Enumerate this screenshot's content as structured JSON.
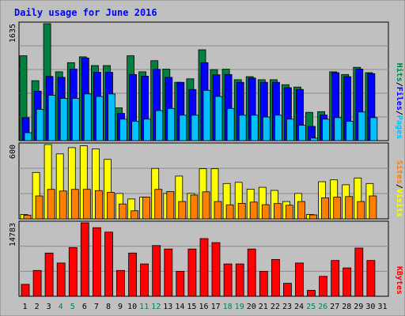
{
  "title": "Daily usage for June 2016",
  "colors": {
    "background": "#c0c0c0",
    "title": "#0000ff",
    "hits": "#008040",
    "files": "#0000ff",
    "pages": "#00c0ff",
    "visits": "#ffff00",
    "sites": "#ff8000",
    "kbytes": "#ff0000",
    "weekend_label": "#00805c",
    "weekday_label": "#000000"
  },
  "chart_data": [
    {
      "type": "bar",
      "panel": "hits-files-pages",
      "ymax_label": "1635",
      "ylim": [
        0,
        1635
      ],
      "axis_legend": [
        "Hits",
        "Files",
        "Pages"
      ],
      "categories": [
        "1",
        "2",
        "3",
        "4",
        "5",
        "6",
        "7",
        "8",
        "9",
        "10",
        "11",
        "12",
        "13",
        "14",
        "15",
        "16",
        "17",
        "18",
        "19",
        "20",
        "21",
        "22",
        "23",
        "24",
        "25",
        "26",
        "27",
        "28",
        "29",
        "30",
        "31"
      ],
      "weekend_days": [
        4,
        5,
        11,
        12,
        18,
        19,
        25,
        26
      ],
      "series": [
        {
          "name": "Hits",
          "values": [
            1187,
            839,
            1635,
            962,
            1090,
            1172,
            1049,
            1049,
            459,
            1187,
            962,
            1118,
            1000,
            815,
            864,
            1270,
            993,
            1000,
            852,
            895,
            852,
            852,
            782,
            749,
            395,
            405,
            962,
            925,
            1025,
            950,
            0
          ]
        },
        {
          "name": "Files",
          "values": [
            322,
            692,
            897,
            885,
            1000,
            1156,
            956,
            956,
            380,
            925,
            901,
            997,
            885,
            815,
            715,
            1090,
            920,
            925,
            815,
            875,
            815,
            815,
            740,
            716,
            199,
            358,
            950,
            895,
            1000,
            937,
            0
          ]
        },
        {
          "name": "Pages",
          "values": [
            110,
            437,
            634,
            591,
            591,
            653,
            617,
            653,
            300,
            270,
            300,
            420,
            450,
            356,
            356,
            704,
            617,
            450,
            356,
            356,
            330,
            356,
            300,
            215,
            35,
            300,
            321,
            270,
            400,
            321,
            0
          ]
        }
      ]
    },
    {
      "type": "bar",
      "panel": "visits-sites",
      "ymax_label": "600",
      "ylim": [
        0,
        600
      ],
      "axis_legend": [
        "Sites",
        "Visits"
      ],
      "categories": [
        "1",
        "2",
        "3",
        "4",
        "5",
        "6",
        "7",
        "8",
        "9",
        "10",
        "11",
        "12",
        "13",
        "14",
        "15",
        "16",
        "17",
        "18",
        "19",
        "20",
        "21",
        "22",
        "23",
        "24",
        "25",
        "26",
        "27",
        "28",
        "29",
        "30",
        "31"
      ],
      "weekend_days": [
        4,
        5,
        11,
        12,
        18,
        19,
        25,
        26
      ],
      "series": [
        {
          "name": "Visits",
          "values": [
            35,
            375,
            600,
            525,
            575,
            590,
            565,
            480,
            205,
            160,
            175,
            407,
            205,
            345,
            205,
            405,
            405,
            285,
            295,
            240,
            255,
            230,
            140,
            205,
            35,
            300,
            315,
            275,
            330,
            285,
            0
          ]
        },
        {
          "name": "Sites",
          "values": [
            30,
            185,
            238,
            225,
            238,
            238,
            228,
            214,
            120,
            65,
            175,
            238,
            220,
            140,
            192,
            218,
            140,
            113,
            125,
            135,
            114,
            123,
            110,
            140,
            32,
            170,
            175,
            180,
            140,
            185,
            0
          ]
        }
      ]
    },
    {
      "type": "bar",
      "panel": "kbytes",
      "ymax_label": "14783",
      "ylim": [
        0,
        14783
      ],
      "axis_legend": [
        "KBytes"
      ],
      "categories": [
        "1",
        "2",
        "3",
        "4",
        "5",
        "6",
        "7",
        "8",
        "9",
        "10",
        "11",
        "12",
        "13",
        "14",
        "15",
        "16",
        "17",
        "18",
        "19",
        "20",
        "21",
        "22",
        "23",
        "24",
        "25",
        "26",
        "27",
        "28",
        "29",
        "30",
        "31"
      ],
      "weekend_days": [
        4,
        5,
        11,
        12,
        18,
        19,
        25,
        26
      ],
      "series": [
        {
          "name": "KBytes",
          "values": [
            2400,
            5200,
            8700,
            6700,
            9800,
            14783,
            13800,
            12900,
            5200,
            8700,
            6500,
            10200,
            9500,
            5000,
            9500,
            11600,
            10800,
            6500,
            6500,
            9500,
            5000,
            7400,
            2600,
            6700,
            1200,
            4000,
            7200,
            5700,
            9700,
            7200,
            0
          ]
        }
      ]
    }
  ]
}
